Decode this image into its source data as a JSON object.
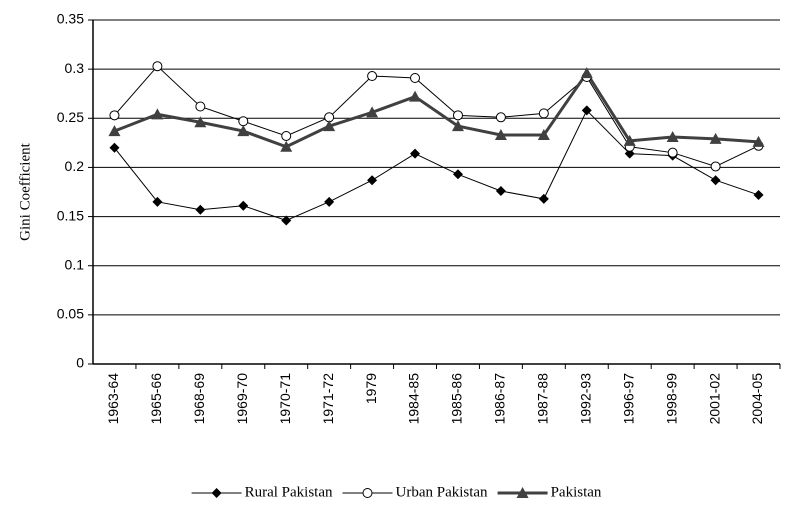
{
  "chart_data": {
    "type": "line",
    "y_label": "Gini Coefficient",
    "categories": [
      "1963-64",
      "1965-66",
      "1968-69",
      "1969-70",
      "1970-71",
      "1971-72",
      "1979",
      "1984-85",
      "1985-86",
      "1986-87",
      "1987-88",
      "1992-93",
      "1996-97",
      "1998-99",
      "2001-02",
      "2004-05"
    ],
    "series": [
      {
        "name": "Rural Pakistan",
        "color": "#000000",
        "marker": "diamond",
        "line_width": 1,
        "values": [
          0.22,
          0.165,
          0.157,
          0.161,
          0.146,
          0.165,
          0.187,
          0.214,
          0.193,
          0.176,
          0.168,
          0.258,
          0.214,
          0.212,
          0.187,
          0.172
        ]
      },
      {
        "name": "Urban Pakistan",
        "color": "#000000",
        "marker": "circle",
        "line_width": 1,
        "values": [
          0.253,
          0.303,
          0.262,
          0.247,
          0.232,
          0.251,
          0.293,
          0.291,
          0.253,
          0.251,
          0.255,
          0.292,
          0.221,
          0.215,
          0.201,
          0.222
        ]
      },
      {
        "name": "Pakistan",
        "color": "#404040",
        "marker": "triangle",
        "line_width": 3,
        "values": [
          0.237,
          0.254,
          0.246,
          0.237,
          0.221,
          0.242,
          0.256,
          0.272,
          0.242,
          0.233,
          0.233,
          0.296,
          0.227,
          0.231,
          0.229,
          0.226
        ]
      }
    ],
    "ylim": [
      0,
      0.35
    ],
    "yticks": [
      0,
      0.05,
      0.1,
      0.15,
      0.2,
      0.25,
      0.3,
      0.35
    ],
    "grid": true,
    "legend": "bottom"
  }
}
